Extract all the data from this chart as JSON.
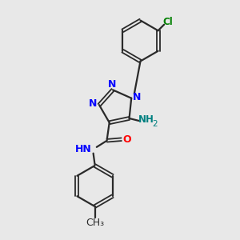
{
  "background_color": "#e8e8e8",
  "bond_color": "#2a2a2a",
  "nitrogen_color": "#0000ff",
  "oxygen_color": "#ff0000",
  "chlorine_color": "#008000",
  "nh2_color": "#008080",
  "figsize": [
    3.0,
    3.0
  ],
  "dpi": 100,
  "xlim": [
    0,
    10
  ],
  "ylim": [
    0,
    10
  ]
}
